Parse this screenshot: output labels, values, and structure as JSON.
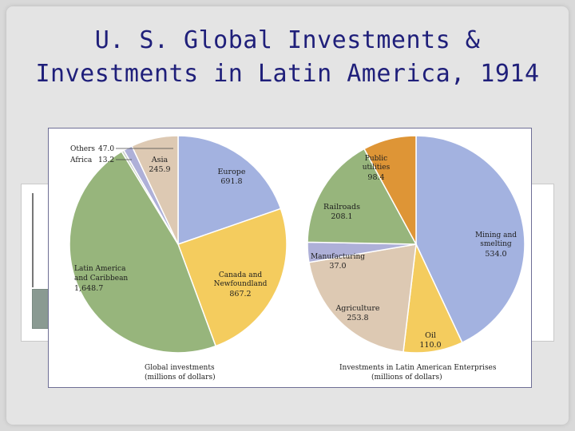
{
  "slide": {
    "title_line1": "U. S. Global Investments &",
    "title_line2": "Investments in Latin America, 1914"
  },
  "colors": {
    "blue": "#a3b2e0",
    "yellow": "#f4cc5e",
    "green": "#97b57c",
    "tan": "#ddc9b3",
    "orange": "#de9536",
    "lavender": "#aeb0d8"
  },
  "chart_data": [
    {
      "type": "pie",
      "title": "Global investments",
      "subtitle": "(millions of dollars)",
      "slices": [
        {
          "label": "Europe",
          "value": 691.8,
          "value_text": "691.8",
          "color": "#a3b2e0"
        },
        {
          "label": "Canada and Newfoundland",
          "value": 867.2,
          "value_text": "867.2",
          "color": "#f4cc5e"
        },
        {
          "label": "Latin America and Caribbean",
          "value": 1648.7,
          "value_text": "1,648.7",
          "color": "#97b57c"
        },
        {
          "label": "Africa",
          "value": 13.2,
          "value_text": "13.2",
          "color": "#c8d1c8"
        },
        {
          "label": "Others",
          "value": 47.0,
          "value_text": "47.0",
          "color": "#aeb0d8"
        },
        {
          "label": "Asia",
          "value": 245.9,
          "value_text": "245.9",
          "color": "#ddc9b3"
        }
      ]
    },
    {
      "type": "pie",
      "title": "Investments in Latin American Enterprises",
      "subtitle": "(millions of dollars)",
      "slices": [
        {
          "label": "Mining and smelting",
          "value": 534.0,
          "value_text": "534.0",
          "color": "#a3b2e0"
        },
        {
          "label": "Oil",
          "value": 110.0,
          "value_text": "110.0",
          "color": "#f4cc5e"
        },
        {
          "label": "Agriculture",
          "value": 253.8,
          "value_text": "253.8",
          "color": "#ddc9b3"
        },
        {
          "label": "Manufacturing",
          "value": 37.0,
          "value_text": "37.0",
          "color": "#aeb0d8"
        },
        {
          "label": "Railroads",
          "value": 208.1,
          "value_text": "208.1",
          "color": "#97b57c"
        },
        {
          "label": "Public utilities",
          "value": 98.4,
          "value_text": "98.4",
          "color": "#de9536"
        }
      ]
    }
  ]
}
